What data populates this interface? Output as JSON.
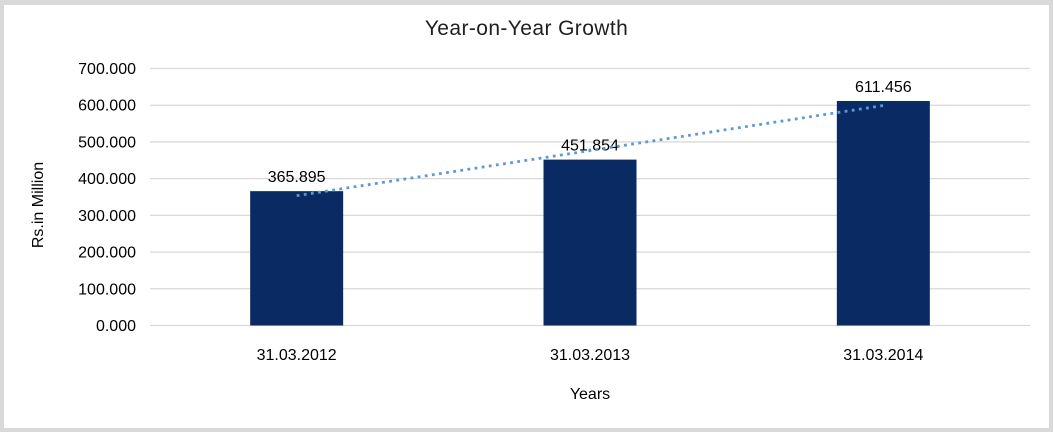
{
  "frame": {
    "border_color": "#D9D9D9",
    "background": "#FFFFFF"
  },
  "chart_data": {
    "type": "bar",
    "title": "Year-on-Year Growth",
    "xlabel": "Years",
    "ylabel": "Rs.in Million",
    "categories": [
      "31.03.2012",
      "31.03.2013",
      "31.03.2014"
    ],
    "values": [
      365.895,
      451.854,
      611.456
    ],
    "data_labels": [
      "365.895",
      "451.854",
      "611.456"
    ],
    "ylim": [
      0,
      700
    ],
    "y_ticks": [
      {
        "value": 0,
        "label": "0.000"
      },
      {
        "value": 100,
        "label": "100.000"
      },
      {
        "value": 200,
        "label": "200.000"
      },
      {
        "value": 300,
        "label": "300.000"
      },
      {
        "value": 400,
        "label": "400.000"
      },
      {
        "value": 500,
        "label": "500.000"
      },
      {
        "value": 600,
        "label": "600.000"
      },
      {
        "value": 700,
        "label": "700.000"
      }
    ],
    "grid": true,
    "legend": "none",
    "bar_color": "#092A63",
    "gridline_color": "#D9D9D9",
    "text_color": "#000000",
    "trendline": {
      "type": "linear",
      "style": "dotted",
      "color": "#5B9BD5"
    }
  }
}
